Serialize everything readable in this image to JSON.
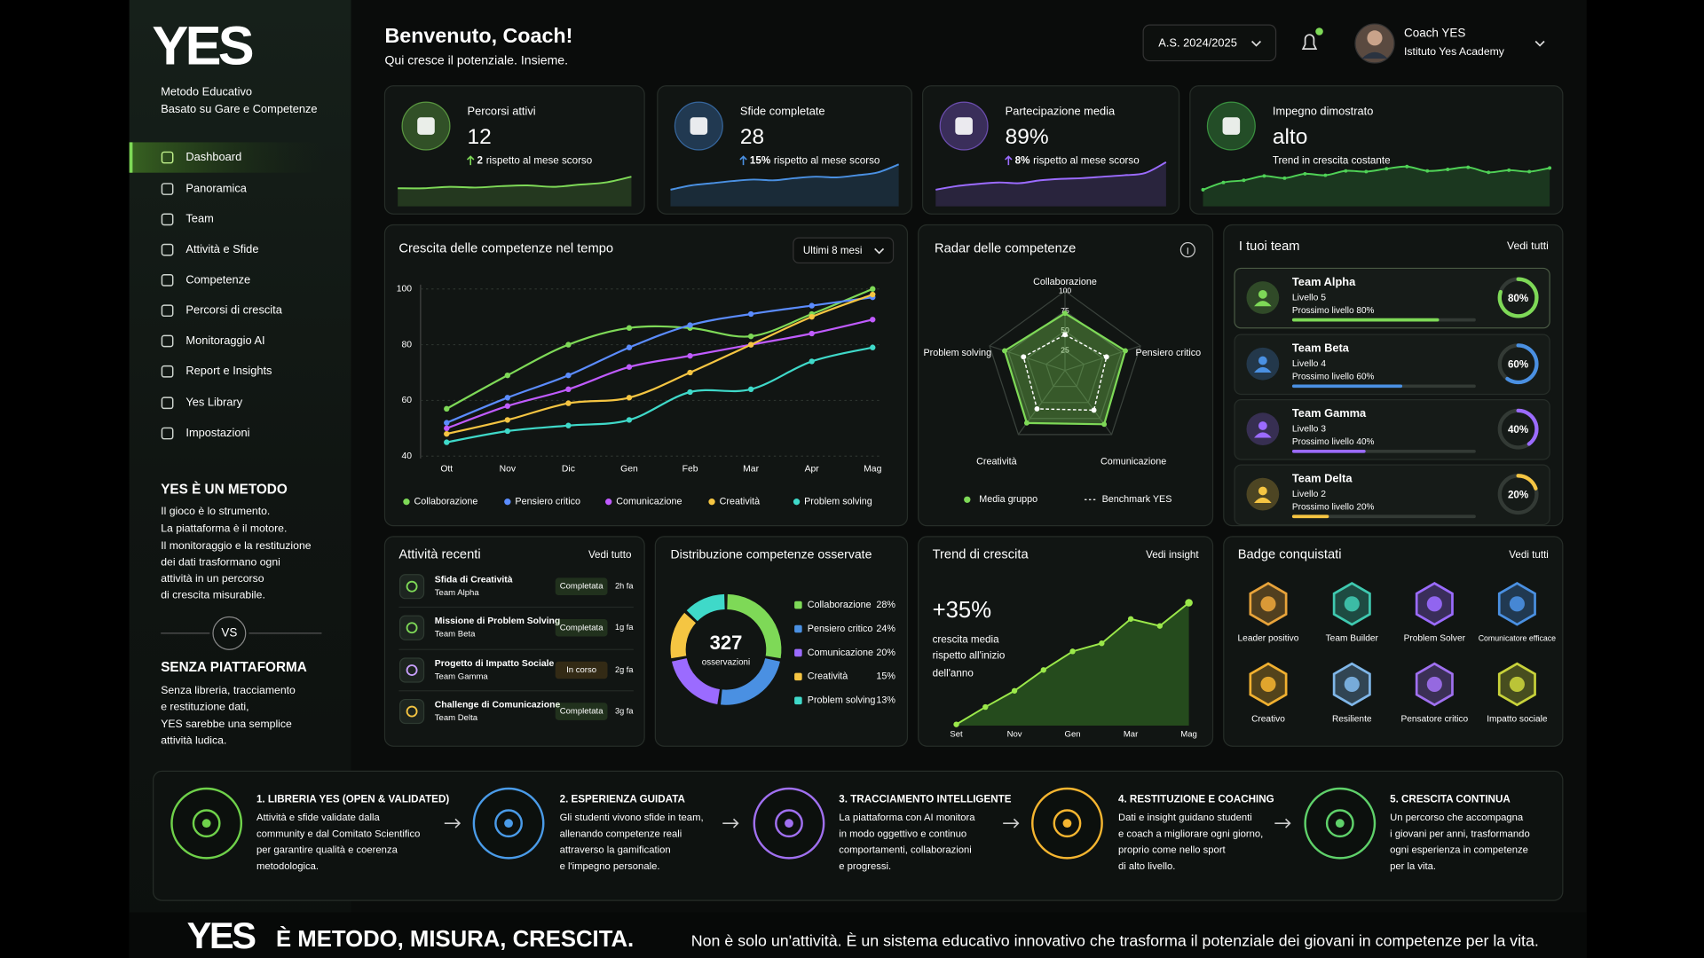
{
  "brand": {
    "logo": "YES",
    "tagline_1": "Metodo Educativo",
    "tagline_2": "Basato su Gare e Competenze"
  },
  "nav": [
    "Dashboard",
    "Panoramica",
    "Team",
    "Attività e Sfide",
    "Competenze",
    "Percorsi di crescita",
    "Monitoraggio AI",
    "Report e Insights",
    "Yes Library",
    "Impostazioni"
  ],
  "method": {
    "title": "YES È UN METODO",
    "lines": [
      "Il gioco è lo strumento.",
      "La piattaforma è il motore.",
      "Il monitoraggio e la restituzione",
      "dei dati trasformano ogni",
      "attività in un percorso",
      "di crescita misurabile."
    ]
  },
  "vs": "VS",
  "without": {
    "title": "SENZA PIATTAFORMA",
    "lines": [
      "Senza libreria, tracciamento",
      "e restituzione dati,",
      "YES sarebbe una semplice",
      "attività ludica."
    ]
  },
  "header": {
    "title": "Benvenuto, Coach!",
    "subtitle": "Qui cresce il potenziale. Insieme.",
    "year": "A.S. 2024/2025",
    "user_name": "Coach YES",
    "user_org": "Istituto Yes Academy"
  },
  "kpi_cards": {
    "spark_ylim": [
      0,
      6
    ],
    "items": [
      {
        "label": "Percorsi attivi",
        "value": "12",
        "delta": "2",
        "delta_text": "rispetto al mese scorso",
        "color": "#7ed957",
        "spark": [
          2.2,
          2.2,
          2.4,
          2.3,
          2.5,
          2.6,
          2.4,
          2.7,
          3.0,
          3.8
        ]
      },
      {
        "label": "Sfide completate",
        "value": "28",
        "delta": "15%",
        "delta_text": "rispetto al mese scorso",
        "color": "#4a90e2",
        "spark": [
          2.0,
          2.6,
          2.9,
          3.2,
          3.4,
          3.3,
          3.6,
          3.8,
          3.7,
          4.0,
          4.4,
          5.5
        ]
      },
      {
        "label": "Partecipazione media",
        "value": "89%",
        "delta": "8%",
        "delta_text": "rispetto al mese scorso",
        "color": "#9b6bff",
        "spark": [
          2.0,
          2.5,
          2.8,
          3.0,
          2.9,
          3.3,
          3.5,
          3.6,
          3.8,
          4.0,
          4.3,
          5.8
        ]
      },
      {
        "label": "Impegno dimostrato",
        "value": "alto",
        "delta_text": "Trend in crescita costante",
        "color": "#4fd156",
        "spark": [
          2.0,
          3.0,
          3.3,
          3.9,
          3.6,
          4.2,
          4.0,
          4.6,
          4.5,
          4.9,
          5.2,
          4.6,
          4.8,
          5.1,
          4.4,
          4.7,
          4.5,
          5.0
        ]
      }
    ]
  },
  "growth_chart": {
    "type": "line",
    "title": "Crescita delle competenze nel tempo",
    "filter": "Ultimi 8 mesi",
    "categories": [
      "Ott",
      "Nov",
      "Dic",
      "Gen",
      "Feb",
      "Mar",
      "Apr",
      "Mag"
    ],
    "ylim": [
      40,
      100
    ],
    "yticks": [
      40,
      60,
      80,
      100
    ],
    "grid": true,
    "series": [
      {
        "name": "Collaborazione",
        "color": "#7ed957",
        "values": [
          57,
          69,
          80,
          86,
          86,
          83,
          91,
          100
        ]
      },
      {
        "name": "Pensiero critico",
        "color": "#5b8cff",
        "values": [
          52,
          61,
          69,
          79,
          87,
          91,
          94,
          97
        ]
      },
      {
        "name": "Comunicazione",
        "color": "#c05bff",
        "values": [
          50,
          58,
          64,
          72,
          76,
          80,
          84,
          89
        ]
      },
      {
        "name": "Creatività",
        "color": "#f5c542",
        "values": [
          48,
          53,
          59,
          61,
          70,
          80,
          90,
          98
        ]
      },
      {
        "name": "Problem solving",
        "color": "#3fd9c9",
        "values": [
          45,
          49,
          51,
          53,
          63,
          64,
          74,
          79
        ]
      }
    ]
  },
  "radar": {
    "type": "radar",
    "title": "Radar delle competenze",
    "axes": [
      "Collaborazione",
      "Pensiero critico",
      "Comunicazione",
      "Creatività",
      "Problem solving"
    ],
    "rlim": [
      0,
      100
    ],
    "rticks": [
      25,
      50,
      75,
      100
    ],
    "series": [
      {
        "name": "Media gruppo",
        "color": "#7ed957",
        "values": [
          72,
          80,
          84,
          82,
          80
        ]
      },
      {
        "name": "Benchmark YES",
        "color": "#ffffff",
        "values": [
          45,
          55,
          62,
          60,
          55
        ]
      }
    ]
  },
  "teams": {
    "title": "I tuoi team",
    "link": "Vedi tutti",
    "items": [
      {
        "name": "Team Alpha",
        "level": "Livello 5",
        "next": "Prossimo livello 80%",
        "progress": 80,
        "progress_label": "80%",
        "color": "#7ed957"
      },
      {
        "name": "Team Beta",
        "level": "Livello 4",
        "next": "Prossimo livello 60%",
        "progress": 60,
        "progress_label": "60%",
        "color": "#4a90e2"
      },
      {
        "name": "Team Gamma",
        "level": "Livello 3",
        "next": "Prossimo livello 40%",
        "progress": 40,
        "progress_label": "40%",
        "color": "#9b6bff"
      },
      {
        "name": "Team Delta",
        "level": "Livello 2",
        "next": "Prossimo livello 20%",
        "progress": 20,
        "progress_label": "20%",
        "color": "#f5c542"
      }
    ]
  },
  "activities": {
    "title": "Attività recenti",
    "link": "Vedi tutto",
    "items": [
      {
        "title": "Sfida di Creatività",
        "team": "Team Alpha",
        "status": "Completata",
        "time": "2h fa",
        "color": "#7ed957"
      },
      {
        "title": "Missione di Problem Solving",
        "team": "Team Beta",
        "status": "Completata",
        "time": "1g fa",
        "color": "#7ed957"
      },
      {
        "title": "Progetto di Impatto Sociale",
        "team": "Team Gamma",
        "status": "In corso",
        "time": "2g fa",
        "color": "#f5a623"
      },
      {
        "title": "Challenge di Comunicazione",
        "team": "Team Delta",
        "status": "Completata",
        "time": "3g fa",
        "color": "#7ed957"
      }
    ]
  },
  "distribution": {
    "type": "pie",
    "title": "Distribuzione competenze osservate",
    "total": "327",
    "total_label": "osservazioni",
    "categories": [
      "Collaborazione",
      "Pensiero critico",
      "Comunicazione",
      "Creatività",
      "Problem solving"
    ],
    "values": [
      28,
      24,
      20,
      15,
      13
    ],
    "value_labels": [
      "28%",
      "24%",
      "20%",
      "15%",
      "13%"
    ],
    "colors": [
      "#7ed957",
      "#4a90e2",
      "#9b6bff",
      "#f5c542",
      "#3fd9c9"
    ]
  },
  "trend": {
    "type": "area",
    "title": "Trend di crescita",
    "link": "Vedi insight",
    "headline": "+35%",
    "caption": [
      "crescita media",
      "rispetto all'inizio",
      "dell'anno"
    ],
    "categories": [
      "Set",
      null,
      "Nov",
      null,
      "Gen",
      null,
      "Mar",
      null,
      "Mag"
    ],
    "values": [
      1,
      16,
      30,
      48,
      64,
      71,
      92,
      86,
      106
    ],
    "ylim": [
      0,
      120
    ],
    "color": "#9be84a"
  },
  "badges": {
    "title": "Badge conquistati",
    "link": "Vedi tutti",
    "items": [
      {
        "name": "Leader positivo",
        "color": "#e8a33a"
      },
      {
        "name": "Team Builder",
        "color": "#3fc9b0"
      },
      {
        "name": "Problem Solver",
        "color": "#9b6bff"
      },
      {
        "name": "Comunicatore efficace",
        "color": "#4a90e2"
      },
      {
        "name": "Creativo",
        "color": "#f0b030"
      },
      {
        "name": "Resiliente",
        "color": "#7fb6e8"
      },
      {
        "name": "Pensatore critico",
        "color": "#a070f0"
      },
      {
        "name": "Impatto sociale",
        "color": "#c8d23a"
      }
    ]
  },
  "steps": [
    {
      "title": "1. LIBRERIA YES (OPEN & VALIDATED)",
      "lines": [
        "Attività e sfide validate dalla",
        "community e dal Comitato Scientifico",
        "per garantire qualità e coerenza",
        "metodologica."
      ],
      "color": "#6fd14a"
    },
    {
      "title": "2. ESPERIENZA GUIDATA",
      "lines": [
        "Gli studenti vivono sfide in team,",
        "allenando competenze reali",
        "attraverso la gamification",
        "e l'impegno personale."
      ],
      "color": "#4a9be8"
    },
    {
      "title": "3. TRACCIAMENTO INTELLIGENTE",
      "lines": [
        "La piattaforma con AI monitora",
        "in modo oggettivo e continuo",
        "comportamenti, collaborazioni",
        "e progressi."
      ],
      "color": "#a070f0"
    },
    {
      "title": "4. RESTITUZIONE E COACHING",
      "lines": [
        "Dati e insight guidano studenti",
        "e coach a migliorare ogni giorno,",
        "proprio come nello sport",
        "di alto livello."
      ],
      "color": "#f5b530"
    },
    {
      "title": "5. CRESCITA CONTINUA",
      "lines": [
        "Un percorso che accompagna",
        "i giovani per anni, trasformando",
        "ogni esperienza in competenze",
        "per la vita."
      ],
      "color": "#5fd16a"
    }
  ],
  "footer": {
    "logo": "YES",
    "claim": "È METODO, MISURA, CRESCITA.",
    "tagline": "Non è solo un'attività. È un sistema educativo innovativo che trasforma il potenziale dei giovani in competenze per la vita."
  }
}
